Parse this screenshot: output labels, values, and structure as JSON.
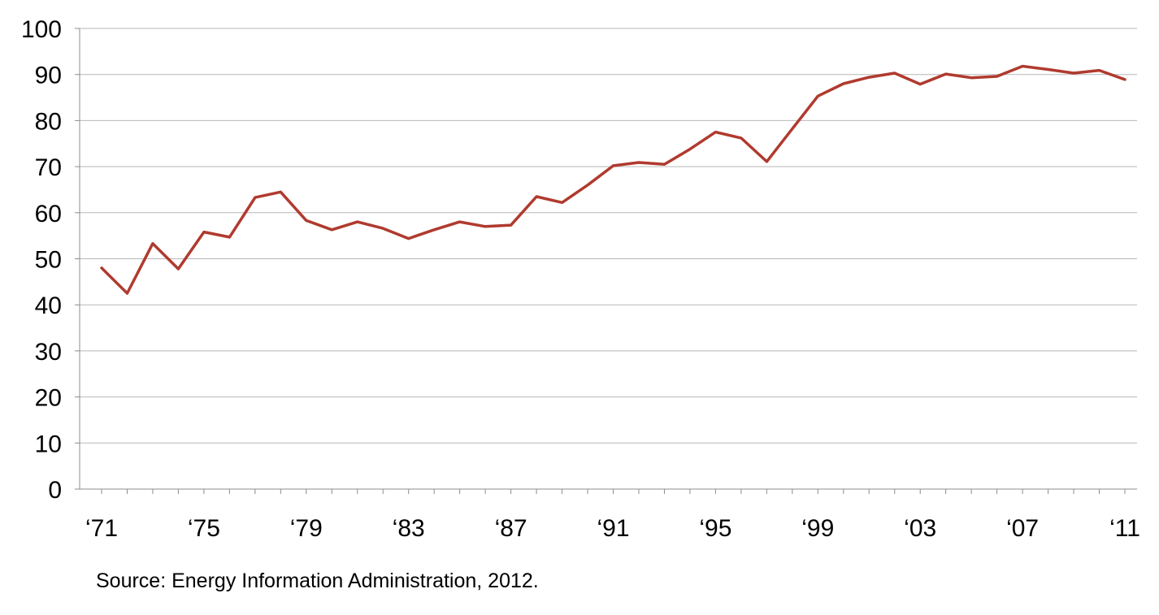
{
  "chart_data": {
    "type": "line",
    "title": "",
    "xlabel": "",
    "ylabel": "",
    "ylim": [
      0,
      100
    ],
    "xlim": [
      1971,
      2011
    ],
    "y_ticks": [
      0,
      10,
      20,
      30,
      40,
      50,
      60,
      70,
      80,
      90,
      100
    ],
    "x_ticks": [
      {
        "year": 1971,
        "label": "‘71"
      },
      {
        "year": 1975,
        "label": "‘75"
      },
      {
        "year": 1979,
        "label": "‘79"
      },
      {
        "year": 1983,
        "label": "‘83"
      },
      {
        "year": 1987,
        "label": "‘87"
      },
      {
        "year": 1991,
        "label": "‘91"
      },
      {
        "year": 1995,
        "label": "‘95"
      },
      {
        "year": 1999,
        "label": "‘99"
      },
      {
        "year": 2003,
        "label": "‘03"
      },
      {
        "year": 2007,
        "label": "‘07"
      },
      {
        "year": 2011,
        "label": "‘11"
      }
    ],
    "grid": true,
    "legend": "none",
    "colors": {
      "line": "#b03a2e",
      "grid": "#b7b7b7",
      "axis": "#8c8c8c"
    },
    "series": [
      {
        "x": [
          1971,
          1972,
          1973,
          1974,
          1975,
          1976,
          1977,
          1978,
          1979,
          1980,
          1981,
          1982,
          1983,
          1984,
          1985,
          1986,
          1987,
          1988,
          1989,
          1990,
          1991,
          1992,
          1993,
          1994,
          1995,
          1996,
          1997,
          1998,
          1999,
          2000,
          2001,
          2002,
          2003,
          2004,
          2005,
          2006,
          2007,
          2008,
          2009,
          2010,
          2011
        ],
        "values": [
          48.0,
          42.5,
          53.3,
          47.8,
          55.8,
          54.7,
          63.3,
          64.5,
          58.3,
          56.3,
          58.0,
          56.6,
          54.4,
          56.3,
          58.0,
          57.0,
          57.3,
          63.5,
          62.2,
          66.0,
          70.2,
          70.9,
          70.5,
          73.8,
          77.5,
          76.2,
          71.1,
          78.2,
          85.3,
          88.0,
          89.4,
          90.3,
          87.9,
          90.1,
          89.3,
          89.6,
          91.8,
          91.1,
          90.3,
          90.9,
          88.9
        ]
      }
    ]
  },
  "source": "Source: Energy Information Administration, 2012."
}
